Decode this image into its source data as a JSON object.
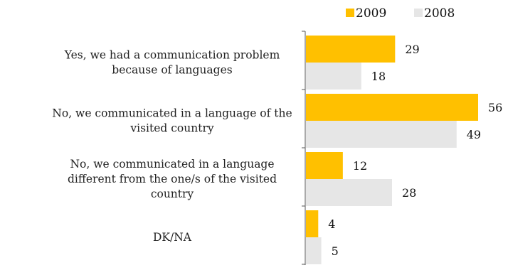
{
  "chart_data": {
    "type": "bar",
    "orientation": "horizontal",
    "categories": [
      [
        "Yes, we had a communication problem",
        "because of languages"
      ],
      [
        "No, we communicated in a language of the",
        "visited country"
      ],
      [
        "No, we communicated in a language",
        "different from the one/s of the visited",
        "country"
      ],
      [
        "DK/NA"
      ]
    ],
    "series": [
      {
        "name": "2009",
        "color": "#FFC000",
        "values": [
          29,
          56,
          12,
          4
        ]
      },
      {
        "name": "2008",
        "color": "#E6E6E6",
        "values": [
          18,
          49,
          28,
          5
        ]
      }
    ],
    "legend_position": "top-right",
    "xlim": [
      0,
      60
    ],
    "grid": false,
    "axis_visible": false
  }
}
